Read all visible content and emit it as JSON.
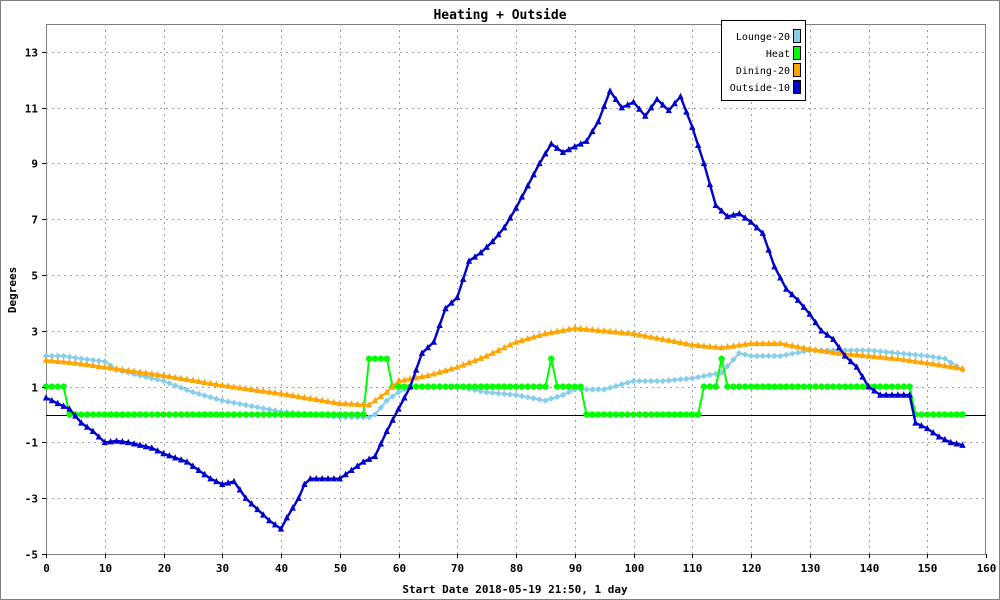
{
  "chart_data": {
    "type": "line",
    "title": "Heating + Outside",
    "xlabel": "Start Date 2018-05-19 21:50, 1 day",
    "ylabel": "Degrees",
    "xlim": [
      0,
      160
    ],
    "ylim": [
      -5,
      14
    ],
    "xticks": [
      0,
      10,
      20,
      30,
      40,
      50,
      60,
      70,
      80,
      90,
      100,
      110,
      120,
      130,
      140,
      150,
      160
    ],
    "yticks": [
      -5,
      -3,
      -1,
      1,
      3,
      5,
      7,
      9,
      11,
      13
    ],
    "grid": true,
    "legend_position": "top-right",
    "series": [
      {
        "name": "Lounge-20",
        "color": "#87ceeb",
        "marker": "diamond",
        "points": [
          [
            0,
            2.1
          ],
          [
            3,
            2.1
          ],
          [
            6,
            2.0
          ],
          [
            10,
            1.9
          ],
          [
            12,
            1.6
          ],
          [
            16,
            1.4
          ],
          [
            20,
            1.2
          ],
          [
            25,
            0.8
          ],
          [
            30,
            0.5
          ],
          [
            35,
            0.3
          ],
          [
            40,
            0.1
          ],
          [
            45,
            0.0
          ],
          [
            50,
            -0.1
          ],
          [
            55,
            -0.1
          ],
          [
            56,
            0.0
          ],
          [
            58,
            0.5
          ],
          [
            60,
            0.8
          ],
          [
            62,
            1.0
          ],
          [
            70,
            1.0
          ],
          [
            75,
            0.8
          ],
          [
            80,
            0.7
          ],
          [
            85,
            0.5
          ],
          [
            88,
            0.7
          ],
          [
            90,
            0.9
          ],
          [
            95,
            0.9
          ],
          [
            100,
            1.2
          ],
          [
            105,
            1.2
          ],
          [
            110,
            1.3
          ],
          [
            115,
            1.5
          ],
          [
            118,
            2.2
          ],
          [
            120,
            2.1
          ],
          [
            125,
            2.1
          ],
          [
            130,
            2.3
          ],
          [
            135,
            2.3
          ],
          [
            140,
            2.3
          ],
          [
            145,
            2.2
          ],
          [
            150,
            2.1
          ],
          [
            153,
            2.0
          ],
          [
            156,
            1.6
          ]
        ]
      },
      {
        "name": "Heat",
        "color": "#00ff00",
        "marker": "circle",
        "points": [
          [
            0,
            1
          ],
          [
            3,
            1
          ],
          [
            4,
            0
          ],
          [
            54,
            0
          ],
          [
            55,
            2
          ],
          [
            58,
            2
          ],
          [
            59,
            1
          ],
          [
            85,
            1
          ],
          [
            86,
            2
          ],
          [
            87,
            1
          ],
          [
            91,
            1
          ],
          [
            92,
            0
          ],
          [
            111,
            0
          ],
          [
            112,
            1
          ],
          [
            114,
            1
          ],
          [
            115,
            2
          ],
          [
            116,
            1
          ],
          [
            147,
            1
          ],
          [
            148,
            0
          ],
          [
            156,
            0
          ]
        ]
      },
      {
        "name": "Dining-20",
        "color": "#ffa500",
        "marker": "triangle",
        "points": [
          [
            0,
            1.95
          ],
          [
            5,
            1.85
          ],
          [
            10,
            1.7
          ],
          [
            20,
            1.4
          ],
          [
            30,
            1.05
          ],
          [
            40,
            0.75
          ],
          [
            50,
            0.4
          ],
          [
            55,
            0.35
          ],
          [
            58,
            0.8
          ],
          [
            60,
            1.2
          ],
          [
            65,
            1.4
          ],
          [
            70,
            1.7
          ],
          [
            75,
            2.1
          ],
          [
            80,
            2.6
          ],
          [
            85,
            2.9
          ],
          [
            90,
            3.1
          ],
          [
            95,
            3.0
          ],
          [
            100,
            2.9
          ],
          [
            105,
            2.7
          ],
          [
            110,
            2.5
          ],
          [
            115,
            2.4
          ],
          [
            120,
            2.55
          ],
          [
            125,
            2.55
          ],
          [
            130,
            2.35
          ],
          [
            135,
            2.2
          ],
          [
            140,
            2.1
          ],
          [
            145,
            2.0
          ],
          [
            150,
            1.85
          ],
          [
            156,
            1.65
          ]
        ]
      },
      {
        "name": "Outside-10",
        "color": "#0000cd",
        "marker": "triangle",
        "points": [
          [
            0,
            0.6
          ],
          [
            2,
            0.4
          ],
          [
            4,
            0.2
          ],
          [
            6,
            -0.3
          ],
          [
            8,
            -0.6
          ],
          [
            10,
            -1.0
          ],
          [
            12,
            -0.95
          ],
          [
            14,
            -1.0
          ],
          [
            18,
            -1.2
          ],
          [
            20,
            -1.4
          ],
          [
            24,
            -1.7
          ],
          [
            26,
            -2.0
          ],
          [
            28,
            -2.3
          ],
          [
            30,
            -2.5
          ],
          [
            32,
            -2.4
          ],
          [
            34,
            -3.0
          ],
          [
            36,
            -3.4
          ],
          [
            38,
            -3.8
          ],
          [
            40,
            -4.1
          ],
          [
            41,
            -3.7
          ],
          [
            43,
            -3.0
          ],
          [
            44,
            -2.5
          ],
          [
            45,
            -2.3
          ],
          [
            48,
            -2.3
          ],
          [
            50,
            -2.3
          ],
          [
            52,
            -2.0
          ],
          [
            54,
            -1.7
          ],
          [
            56,
            -1.5
          ],
          [
            58,
            -0.6
          ],
          [
            60,
            0.2
          ],
          [
            62,
            1.0
          ],
          [
            64,
            2.2
          ],
          [
            66,
            2.6
          ],
          [
            68,
            3.8
          ],
          [
            70,
            4.2
          ],
          [
            72,
            5.5
          ],
          [
            74,
            5.8
          ],
          [
            76,
            6.2
          ],
          [
            78,
            6.7
          ],
          [
            80,
            7.4
          ],
          [
            82,
            8.2
          ],
          [
            84,
            9.0
          ],
          [
            86,
            9.7
          ],
          [
            88,
            9.4
          ],
          [
            90,
            9.6
          ],
          [
            92,
            9.8
          ],
          [
            94,
            10.5
          ],
          [
            96,
            11.6
          ],
          [
            98,
            11.0
          ],
          [
            100,
            11.2
          ],
          [
            102,
            10.7
          ],
          [
            104,
            11.3
          ],
          [
            106,
            10.9
          ],
          [
            108,
            11.4
          ],
          [
            110,
            10.3
          ],
          [
            112,
            9.0
          ],
          [
            114,
            7.5
          ],
          [
            116,
            7.1
          ],
          [
            118,
            7.2
          ],
          [
            120,
            6.9
          ],
          [
            122,
            6.5
          ],
          [
            124,
            5.3
          ],
          [
            126,
            4.5
          ],
          [
            128,
            4.1
          ],
          [
            130,
            3.6
          ],
          [
            132,
            3.0
          ],
          [
            134,
            2.7
          ],
          [
            136,
            2.1
          ],
          [
            138,
            1.7
          ],
          [
            140,
            1.0
          ],
          [
            142,
            0.7
          ],
          [
            146,
            0.7
          ],
          [
            147,
            0.7
          ],
          [
            148,
            -0.3
          ],
          [
            150,
            -0.5
          ],
          [
            152,
            -0.8
          ],
          [
            154,
            -1.0
          ],
          [
            156,
            -1.1
          ]
        ]
      }
    ]
  }
}
